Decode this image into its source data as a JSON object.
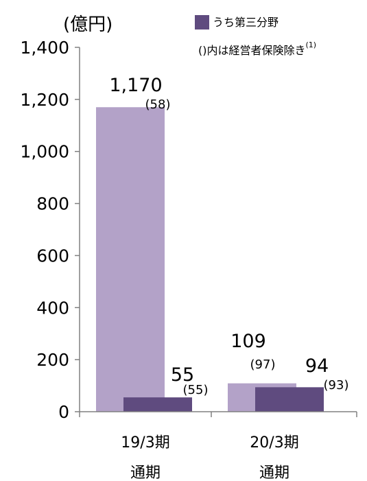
{
  "chart_data": {
    "type": "bar",
    "unit_label": "(億円)",
    "categories": [
      {
        "line1": "19/3期",
        "line2": "通期"
      },
      {
        "line1": "20/3期",
        "line2": "通期"
      }
    ],
    "series": [
      {
        "values": [
          1170,
          109
        ],
        "labels": [
          "1,170",
          "109"
        ],
        "sub_labels": [
          "(58)",
          "(97)"
        ],
        "color": "#b3a2c8"
      },
      {
        "name": "うち第三分野",
        "values": [
          55,
          94
        ],
        "labels": [
          "55",
          "94"
        ],
        "sub_labels": [
          "(55)",
          "(93)"
        ],
        "color": "#5f4b7f"
      }
    ],
    "legend_note": "()内は経営者保険除き",
    "legend_note_sup": "(1)",
    "ylim": [
      0,
      1400
    ],
    "yticks": [
      0,
      200,
      400,
      600,
      800,
      1000,
      1200,
      1400
    ],
    "ytick_labels": [
      "0",
      "200",
      "400",
      "600",
      "800",
      "1,000",
      "1,200",
      "1,400"
    ],
    "axis_color": "#808080",
    "grid": false,
    "legend_position": "top-right"
  }
}
